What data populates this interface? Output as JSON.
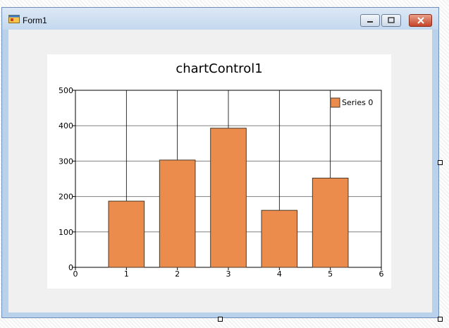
{
  "window": {
    "title": "Form1",
    "controls": {
      "minimize": "minimize",
      "maximize": "maximize",
      "close": "close"
    }
  },
  "colors": {
    "bar_fill": "#ec8c4c",
    "bar_stroke": "#4a3a2a",
    "grid": "#808080"
  },
  "chart_data": {
    "type": "bar",
    "title": "chartControl1",
    "x": [
      1,
      2,
      3,
      4,
      5
    ],
    "values": [
      187,
      303,
      393,
      161,
      252
    ],
    "series": [
      {
        "name": "Series 0",
        "values": [
          187,
          303,
          393,
          161,
          252
        ]
      }
    ],
    "xlim": [
      0,
      6
    ],
    "ylim": [
      0,
      500
    ],
    "x_ticks": [
      0,
      1,
      2,
      3,
      4,
      5,
      6
    ],
    "y_ticks": [
      0,
      100,
      200,
      300,
      400,
      500
    ],
    "grid": true,
    "legend": "top-right",
    "xlabel": "",
    "ylabel": ""
  }
}
